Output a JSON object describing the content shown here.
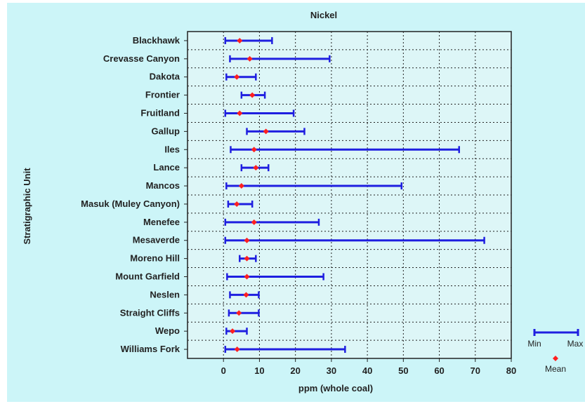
{
  "chart_data": {
    "type": "range",
    "title": "Nickel",
    "xlabel": "ppm (whole coal)",
    "ylabel": "Stratigraphic Unit",
    "xlim": [
      -10,
      80
    ],
    "xticks": [
      0,
      10,
      20,
      30,
      40,
      50,
      60,
      70,
      80
    ],
    "grid": true,
    "legend_position": "bottom-right",
    "colors": {
      "range": "#1f1fe0",
      "mean": "#ff2020",
      "plot_bg": "#ddf6f7"
    },
    "legend": {
      "min_label": "Min",
      "max_label": "Max",
      "mean_label": "Mean"
    },
    "categories": [
      "Blackhawk",
      "Crevasse Canyon",
      "Dakota",
      "Frontier",
      "Fruitland",
      "Gallup",
      "Iles",
      "Lance",
      "Mancos",
      "Masuk (Muley Canyon)",
      "Menefee",
      "Mesaverde",
      "Moreno Hill",
      "Mount Garfield",
      "Neslen",
      "Straight Cliffs",
      "Wepo",
      "Williams Fork"
    ],
    "min": [
      0.5,
      1.8,
      0.8,
      5.0,
      0.5,
      6.5,
      2.0,
      5.0,
      0.8,
      1.3,
      0.5,
      0.5,
      4.5,
      1.0,
      1.8,
      1.5,
      0.8,
      0.5
    ],
    "max": [
      13.5,
      29.5,
      9.0,
      11.5,
      19.5,
      22.5,
      65.5,
      12.5,
      49.5,
      8.0,
      26.5,
      72.5,
      9.0,
      27.8,
      9.8,
      9.8,
      6.5,
      33.8
    ],
    "mean": [
      4.5,
      7.3,
      3.7,
      8.0,
      4.5,
      11.8,
      8.5,
      9.0,
      5.0,
      3.7,
      8.5,
      6.5,
      6.5,
      6.5,
      6.3,
      4.3,
      2.5,
      3.8
    ]
  }
}
